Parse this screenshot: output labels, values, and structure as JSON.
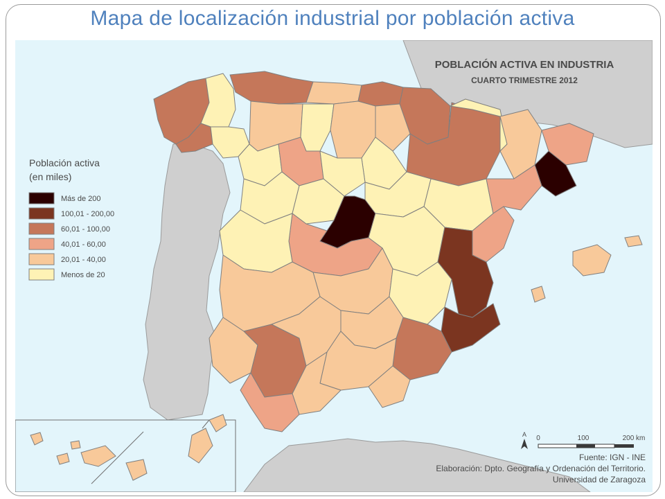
{
  "slide": {
    "title": "Mapa de localización industrial por población activa"
  },
  "map": {
    "title": "POBLACIÓN ACTIVA EN INDUSTRIA",
    "subtitle": "CUARTO TRIMESTRE 2012",
    "legend": {
      "title_line1": "Población activa",
      "title_line2": "(en miles)",
      "classes": [
        {
          "label": "Más de 200",
          "color": "#2b0000"
        },
        {
          "label": "100,01 - 200,00",
          "color": "#7b3520"
        },
        {
          "label": "60,01 - 100,00",
          "color": "#c5775a"
        },
        {
          "label": "40,01 - 60,00",
          "color": "#eea487"
        },
        {
          "label": "20,01 - 40,00",
          "color": "#f8c99a"
        },
        {
          "label": "Menos de 20",
          "color": "#fef2b5"
        }
      ]
    },
    "scale": {
      "ticks": [
        "0",
        "100",
        "200 km"
      ]
    },
    "north_arrow": "A",
    "credits": {
      "source": "Fuente: IGN - INE",
      "elaboration": "Elaboración: Dpto. Geografía y Ordenación del Territorio.",
      "university": "Universidad de Zaragoza"
    },
    "colors": {
      "sea": "#e3f5fb",
      "neighbor_land": "#cfcfcf",
      "border": "#7f7f7f"
    }
  }
}
